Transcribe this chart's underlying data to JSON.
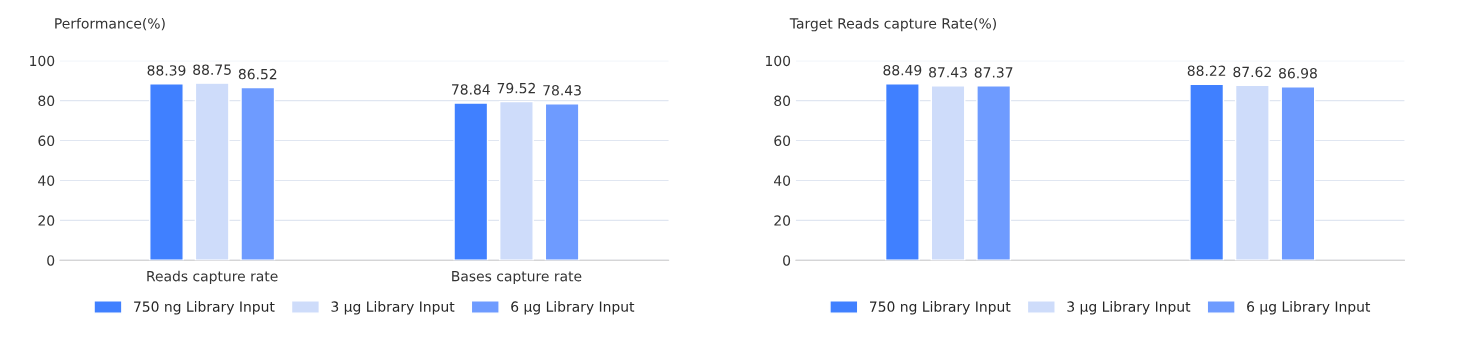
{
  "chart_data": [
    {
      "type": "bar",
      "title": "Performance(%)",
      "categories": [
        "Reads capture rate",
        "Bases capture rate"
      ],
      "ylim": [
        0,
        100
      ],
      "yticks": [
        0,
        20,
        40,
        60,
        80,
        100
      ],
      "grid": "y",
      "legend": "bottom",
      "data_labels": true,
      "series": [
        {
          "name": "750 ng Library Input",
          "color": "#4080ff",
          "values": [
            88.39,
            78.84
          ]
        },
        {
          "name": "3 μg Library Input",
          "color": "#cedcfa",
          "values": [
            88.75,
            79.52
          ]
        },
        {
          "name": "6 μg Library Input",
          "color": "#6e9bff",
          "values": [
            86.52,
            78.43
          ]
        }
      ]
    },
    {
      "type": "bar",
      "title": "Target Reads capture Rate(%)",
      "categories": [
        null,
        null
      ],
      "ylim": [
        0,
        100
      ],
      "yticks": [
        0,
        20,
        40,
        60,
        80,
        100
      ],
      "grid": "y",
      "legend": "bottom",
      "data_labels": true,
      "series": [
        {
          "name": "750 ng Library Input",
          "color": "#4080ff",
          "values": [
            88.49,
            88.22
          ]
        },
        {
          "name": "3 μg Library Input",
          "color": "#cedcfa",
          "values": [
            87.43,
            87.62
          ]
        },
        {
          "name": "6 μg Library Input",
          "color": "#6e9bff",
          "values": [
            87.37,
            86.98
          ]
        }
      ]
    }
  ]
}
